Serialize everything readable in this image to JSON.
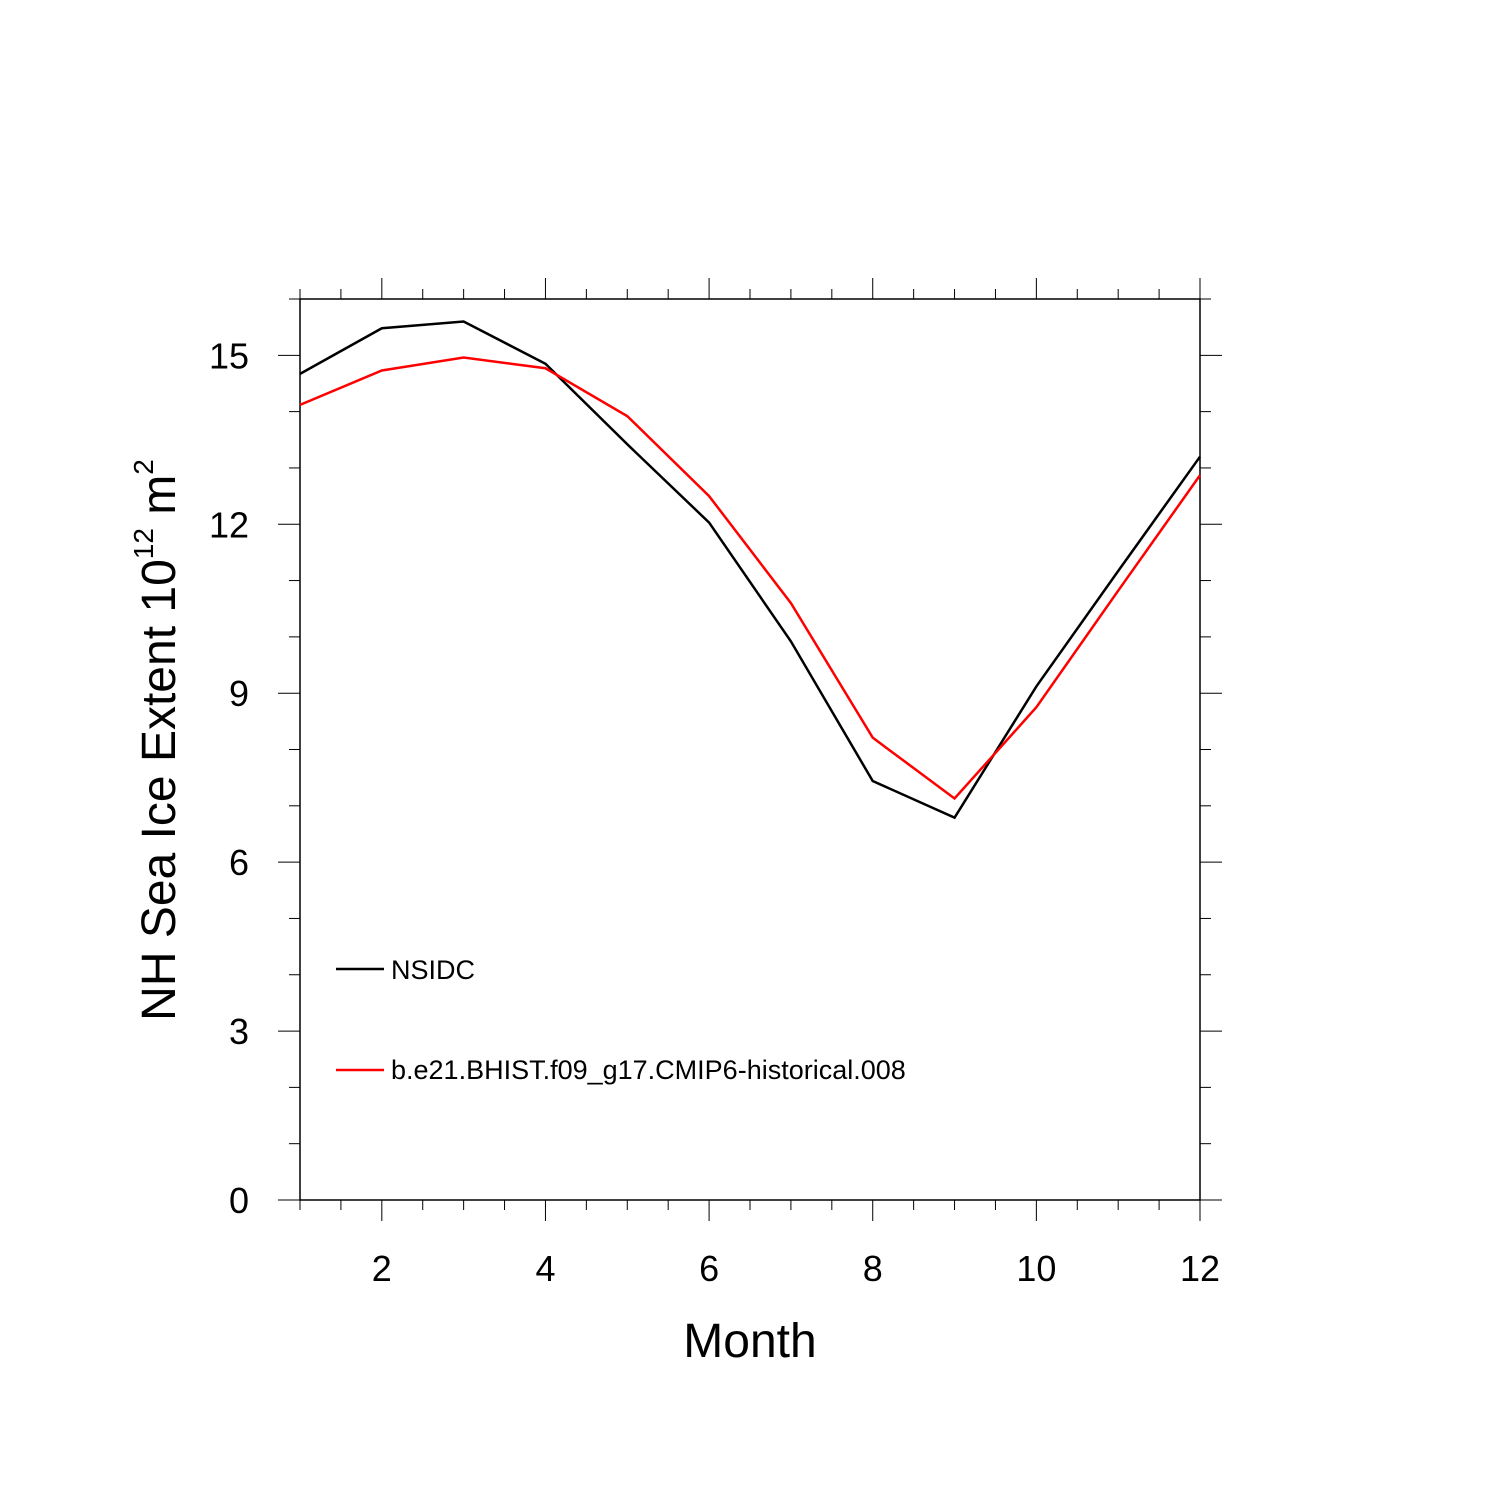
{
  "chart_data": {
    "type": "line",
    "xlabel": "Month",
    "ylabel": "NH Sea Ice Extent 10",
    "ylabel_exponent": "12",
    "ylabel_unit": " m",
    "ylabel_unit_exponent": "2",
    "xlim": [
      1,
      12
    ],
    "ylim": [
      0,
      16
    ],
    "x_ticks": [
      2,
      4,
      6,
      8,
      10,
      12
    ],
    "x_tick_labels": [
      "2",
      "4",
      "6",
      "8",
      "10",
      "12"
    ],
    "y_ticks": [
      0,
      3,
      6,
      9,
      12,
      15
    ],
    "y_tick_labels": [
      "0",
      "3",
      "6",
      "9",
      "12",
      "15"
    ],
    "grid": false,
    "legend_position": "lower-left inside",
    "x": [
      1,
      2,
      3,
      4,
      5,
      6,
      7,
      8,
      9,
      10,
      11,
      12
    ],
    "series": [
      {
        "name": "NSIDC",
        "color": "#000000",
        "values": [
          14.67,
          15.48,
          15.6,
          14.85,
          13.42,
          12.03,
          9.92,
          7.44,
          6.79,
          9.12,
          11.17,
          13.2
        ]
      },
      {
        "name": "b.e21.BHIST.f09_g17.CMIP6-historical.008",
        "color": "#ff0000",
        "values": [
          14.12,
          14.73,
          14.96,
          14.77,
          13.92,
          12.5,
          10.6,
          8.21,
          7.13,
          8.75,
          10.82,
          12.87
        ]
      }
    ]
  }
}
